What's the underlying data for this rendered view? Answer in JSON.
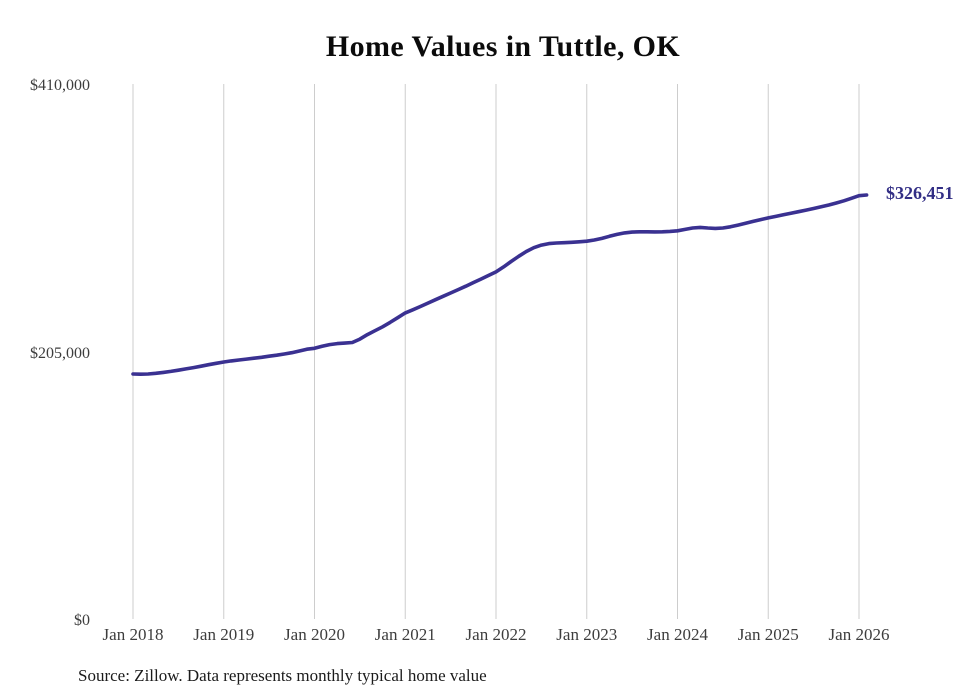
{
  "title": "Home Values in Tuttle, OK",
  "source_note": "Source: Zillow. Data represents monthly typical home value",
  "colors": {
    "line": "#3a3191",
    "end_label": "#322e85",
    "grid": "#cdcdcd",
    "axis_label": "#3d3d3d",
    "title": "#0b0b0b",
    "source": "#1b1b1b",
    "background": "#ffffff"
  },
  "chart_data": {
    "type": "line",
    "title": "Home Values in Tuttle, OK",
    "xlabel": "",
    "ylabel": "",
    "ylim": [
      0,
      410000
    ],
    "grid": "vertical-only",
    "legend": "none",
    "frequency": "monthly",
    "start_month": "2018-01",
    "end_month": "2026-02",
    "x_tick_labels": [
      "Jan 2018",
      "Jan 2019",
      "Jan 2020",
      "Jan 2021",
      "Jan 2022",
      "Jan 2023",
      "Jan 2024",
      "Jan 2025",
      "Jan 2026"
    ],
    "y_ticks": [
      {
        "label": "$410,000",
        "value": 410000
      },
      {
        "label": "$205,000",
        "value": 205000
      },
      {
        "label": "$0",
        "value": 0
      }
    ],
    "end_label": "$326,451",
    "last_value": 326451,
    "series": [
      {
        "name": "Typical home value",
        "values": [
          189300,
          189100,
          189300,
          189800,
          190500,
          191300,
          192200,
          193200,
          194200,
          195300,
          196400,
          197500,
          198500,
          199300,
          200000,
          200700,
          201400,
          202100,
          202900,
          203700,
          204600,
          205600,
          206900,
          208300,
          209000,
          210500,
          211800,
          212600,
          213000,
          213400,
          216000,
          219500,
          222500,
          225500,
          228800,
          232400,
          236100,
          238500,
          241000,
          243600,
          246200,
          248800,
          251400,
          254000,
          256600,
          259300,
          262000,
          264800,
          267500,
          271400,
          275500,
          279500,
          283200,
          286100,
          288100,
          289200,
          289700,
          289900,
          290200,
          290600,
          291100,
          292000,
          293200,
          294800,
          296300,
          297400,
          298000,
          298300,
          298300,
          298200,
          298300,
          298600,
          299000,
          300100,
          301200,
          301600,
          301200,
          300900,
          301200,
          302100,
          303400,
          304800,
          306200,
          307600,
          308900,
          310100,
          311300,
          312500,
          313700,
          314900,
          316100,
          317400,
          318800,
          320300,
          322000,
          323900,
          325900,
          326451
        ]
      }
    ]
  }
}
